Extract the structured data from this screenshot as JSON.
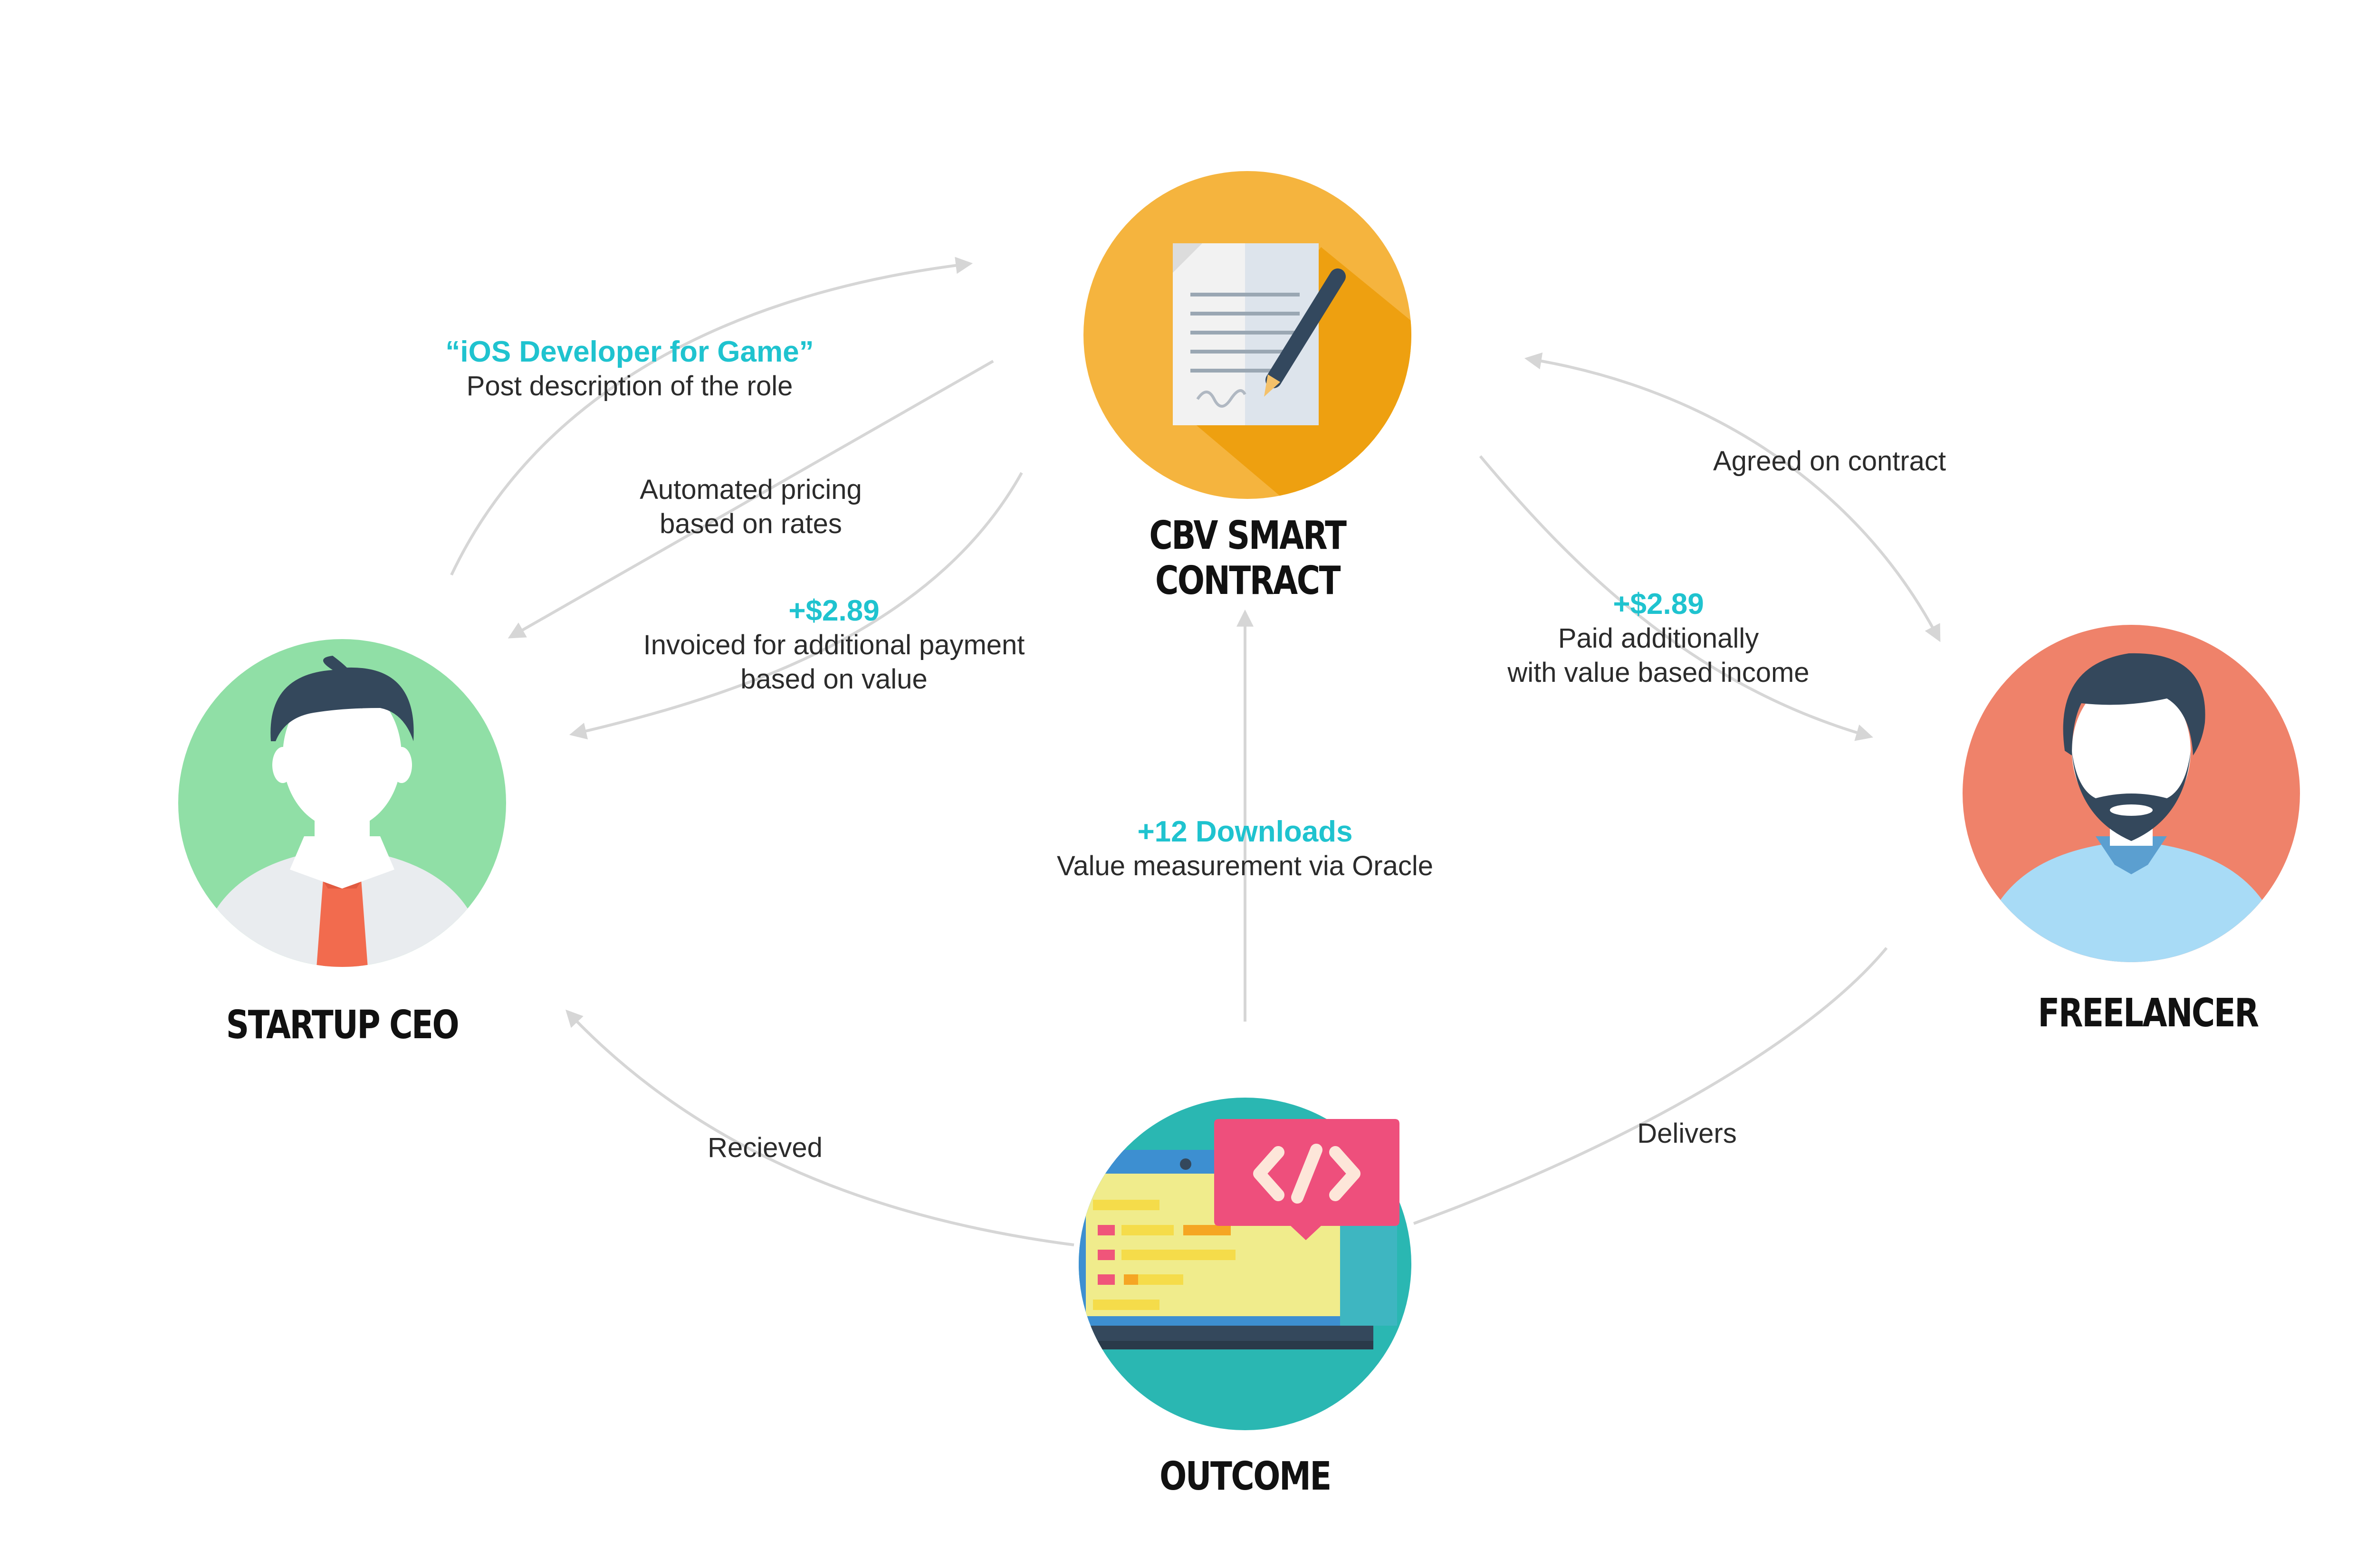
{
  "nodes": {
    "contract": "CBV SMART CONTRACT",
    "ceo": "STARTUP CEO",
    "freelancer": "FREELANCER",
    "outcome": "OUTCOME"
  },
  "edges": {
    "post_role": {
      "highlight": "“iOS Developer for Game”",
      "text": "Post description of the role"
    },
    "auto_pricing": {
      "line1": "Automated pricing",
      "line2": "based on rates"
    },
    "invoiced": {
      "highlight": "+$2.89",
      "line1": "Invoiced for additional payment",
      "line2": "based on value"
    },
    "agreed": {
      "text": "Agreed on contract"
    },
    "paid": {
      "highlight": "+$2.89",
      "line1": "Paid additionally",
      "line2": "with value based income"
    },
    "oracle": {
      "highlight": "+12 Downloads",
      "text": "Value measurement via Oracle"
    },
    "received": {
      "text": "Recieved"
    },
    "delivers": {
      "text": "Delivers"
    }
  },
  "icons": {
    "contract": "contract-document-pen-icon",
    "ceo": "businessman-avatar-icon",
    "freelancer": "bearded-freelancer-avatar-icon",
    "outcome": "laptop-code-icon"
  },
  "colors": {
    "contract_circle": "#f5b43e",
    "ceo_circle": "#90dfa6",
    "freelancer_circle": "#ef826a",
    "outcome_circle": "#2ab7b2",
    "highlight_text": "#1fc3cf",
    "arrow": "#d6d6d6"
  }
}
